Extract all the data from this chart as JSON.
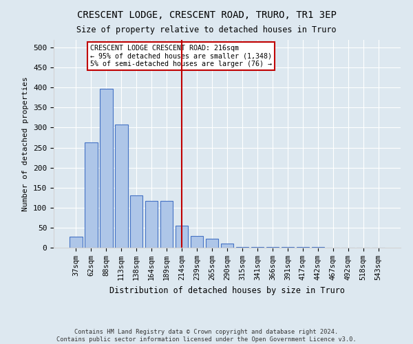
{
  "title": "CRESCENT LODGE, CRESCENT ROAD, TRURO, TR1 3EP",
  "subtitle": "Size of property relative to detached houses in Truro",
  "xlabel": "Distribution of detached houses by size in Truro",
  "ylabel": "Number of detached properties",
  "categories": [
    "37sqm",
    "62sqm",
    "88sqm",
    "113sqm",
    "138sqm",
    "164sqm",
    "189sqm",
    "214sqm",
    "239sqm",
    "265sqm",
    "290sqm",
    "315sqm",
    "341sqm",
    "366sqm",
    "391sqm",
    "417sqm",
    "442sqm",
    "467sqm",
    "492sqm",
    "518sqm",
    "543sqm"
  ],
  "bar_values": [
    27,
    263,
    397,
    307,
    131,
    117,
    117,
    55,
    30,
    22,
    10,
    2,
    1,
    1,
    1,
    1,
    1,
    0,
    0,
    0,
    0
  ],
  "bar_color": "#aec6e8",
  "bar_edge_color": "#4472c4",
  "vline_index": 7,
  "vline_color": "#c00000",
  "annotation_title": "CRESCENT LODGE CRESCENT ROAD: 216sqm",
  "annotation_line1": "← 95% of detached houses are smaller (1,348)",
  "annotation_line2": "5% of semi-detached houses are larger (76) →",
  "annotation_box_color": "#c00000",
  "ylim": [
    0,
    520
  ],
  "yticks": [
    0,
    50,
    100,
    150,
    200,
    250,
    300,
    350,
    400,
    450,
    500
  ],
  "footer1": "Contains HM Land Registry data © Crown copyright and database right 2024.",
  "footer2": "Contains public sector information licensed under the Open Government Licence v3.0.",
  "bg_color": "#dde8f0"
}
